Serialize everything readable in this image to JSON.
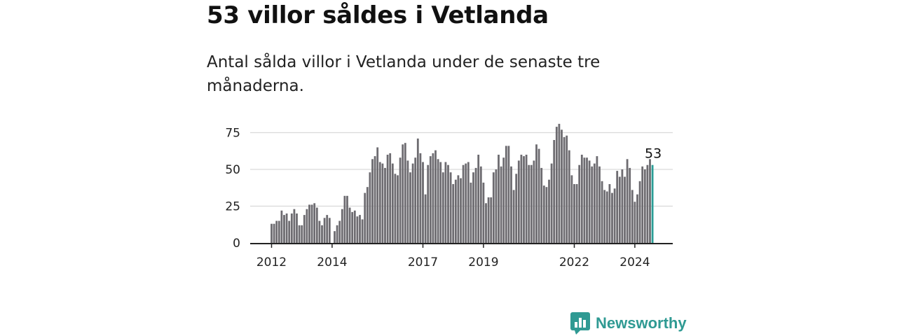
{
  "title": "53 villor såldes i Vetlanda",
  "subtitle": "Antal sålda villor i Vetlanda under de senaste tre månaderna.",
  "brand": {
    "name": "Newsworthy",
    "icon": "bar-chart-logo-icon",
    "color": "#2f9a93"
  },
  "chart_data": {
    "type": "bar",
    "x_start": "2012-01",
    "x_end": "2024-12",
    "x_ticks": [
      "2012",
      "2014",
      "2017",
      "2019",
      "2022",
      "2024"
    ],
    "y_ticks": [
      "0",
      "25",
      "50",
      "75"
    ],
    "ylim": [
      0,
      82
    ],
    "grid": true,
    "bar_color": "#6d6b70",
    "highlight_color": "#2a9d96",
    "highlight_label": "53",
    "values": [
      13,
      13,
      15,
      15,
      22,
      19,
      20,
      15,
      20,
      23,
      20,
      12,
      12,
      19,
      23,
      26,
      26,
      27,
      24,
      15,
      12,
      17,
      19,
      17,
      0,
      8,
      12,
      15,
      23,
      32,
      32,
      24,
      21,
      22,
      18,
      19,
      16,
      34,
      38,
      48,
      57,
      59,
      65,
      55,
      54,
      51,
      60,
      61,
      54,
      47,
      46,
      58,
      67,
      68,
      56,
      48,
      54,
      58,
      71,
      61,
      55,
      33,
      53,
      59,
      61,
      63,
      57,
      55,
      48,
      55,
      53,
      48,
      40,
      43,
      46,
      44,
      53,
      54,
      55,
      41,
      48,
      51,
      60,
      52,
      41,
      27,
      31,
      31,
      48,
      50,
      60,
      52,
      58,
      66,
      66,
      52,
      36,
      47,
      56,
      60,
      59,
      60,
      53,
      53,
      56,
      67,
      64,
      51,
      39,
      38,
      43,
      54,
      70,
      79,
      81,
      77,
      72,
      73,
      63,
      46,
      40,
      40,
      53,
      60,
      58,
      58,
      56,
      52,
      54,
      59,
      52,
      42,
      36,
      35,
      40,
      34,
      37,
      49,
      45,
      50,
      45,
      57,
      51,
      36,
      28,
      33,
      42,
      52,
      50,
      53,
      57,
      53
    ]
  }
}
